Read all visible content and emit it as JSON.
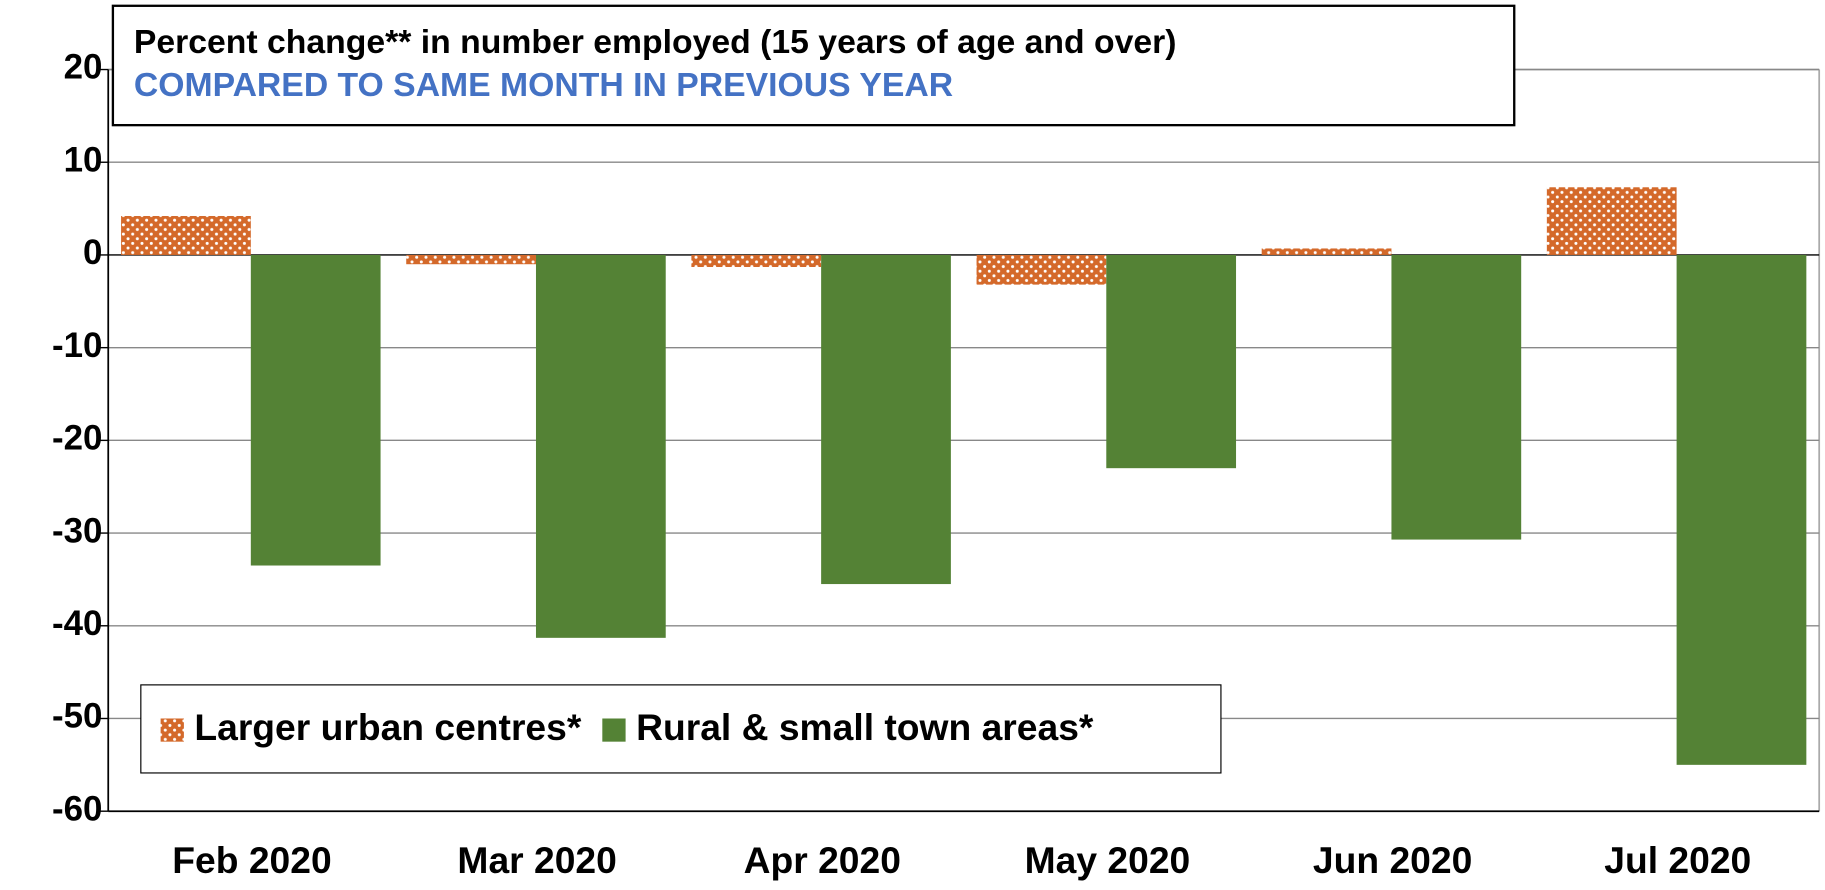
{
  "chart_data": {
    "type": "bar",
    "title": "Percent change** in number employed (15 years of age and over)",
    "subtitle": "COMPARED TO SAME MONTH IN PREVIOUS YEAR",
    "categories": [
      "Feb 2020",
      "Mar 2020",
      "Apr 2020",
      "May 2020",
      "Jun 2020",
      "Jul 2020"
    ],
    "series": [
      {
        "name": "Larger urban centres*",
        "color": "#d4692a",
        "pattern": "dots",
        "values": [
          4.2,
          -1,
          -1.3,
          -3.2,
          0.7,
          7.3
        ]
      },
      {
        "name": "Rural & small town areas*",
        "color": "#548235",
        "values": [
          -33.5,
          -41.3,
          -35.5,
          -23,
          -30.7,
          -55
        ]
      }
    ],
    "ylim": [
      -60,
      20
    ],
    "yticks": [
      -60,
      -50,
      -40,
      -30,
      -20,
      -10,
      0,
      10,
      20
    ],
    "grid": true,
    "legend": "lower left"
  }
}
